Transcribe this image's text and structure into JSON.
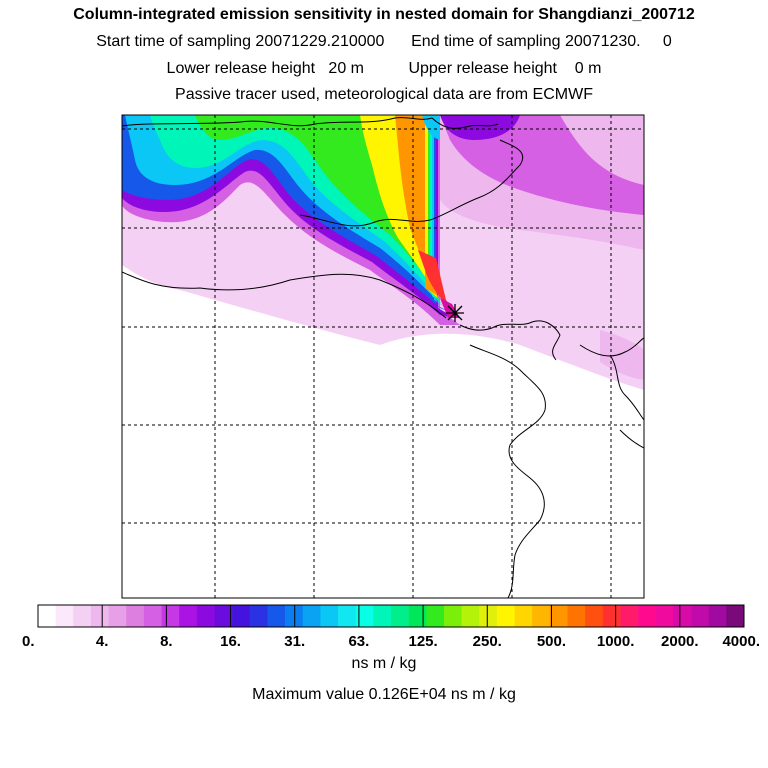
{
  "header": {
    "title": "Column-integrated emission sensitivity in nested domain for Shangdianzi_200712",
    "sampling_line": "Start time of sampling 20071229.210000      End time of sampling 20071230.     0",
    "release_line": "Lower release height   20 m          Upper release height    0 m",
    "tracer_line": "Passive tracer used, meteorological data are from ECMWF"
  },
  "colorbar": {
    "colors": [
      "#ffffff",
      "#fbe8fb",
      "#f5d0f5",
      "#eeb8ee",
      "#e79fe7",
      "#dd7fe1",
      "#d560e3",
      "#c637e6",
      "#aa13e3",
      "#8c0adf",
      "#6a0cde",
      "#4413dd",
      "#2a32e3",
      "#1658ea",
      "#0a7ef0",
      "#0aa3f4",
      "#0ac7f6",
      "#11e7f0",
      "#08ffe6",
      "#00f5b8",
      "#00ee8c",
      "#00e85a",
      "#32ea1e",
      "#7bef0a",
      "#b4f20a",
      "#e0f00c",
      "#fff500",
      "#ffd600",
      "#ffb600",
      "#ff9600",
      "#ff7400",
      "#ff5012",
      "#ff3030",
      "#ff1a6a",
      "#ff0a8e",
      "#f00a9e",
      "#d80aa8",
      "#c00aaa",
      "#a00aa0",
      "#7a0a7a"
    ],
    "labels": [
      "0.",
      "4.",
      "8.",
      "16.",
      "31.",
      "63.",
      "125.",
      "250.",
      "500.",
      "1000.",
      "2000.",
      "4000."
    ],
    "units": "ns m / kg"
  },
  "max_value_text": "Maximum value  0.126E+04 ns m / kg",
  "map": {
    "receptor_marker": "asterisk-icon",
    "plume_colors": {
      "faint": "#f5d0f5",
      "light": "#eeb8ee",
      "mid": "#d560e3",
      "violet": "#8c0adf",
      "blue": "#1658ea",
      "cyan": "#0ac7f6",
      "teal": "#00f5b8",
      "green": "#32ea1e",
      "yellow": "#fff500",
      "orange": "#ff9600",
      "red": "#ff3030",
      "magenta": "#d80aa8"
    }
  }
}
